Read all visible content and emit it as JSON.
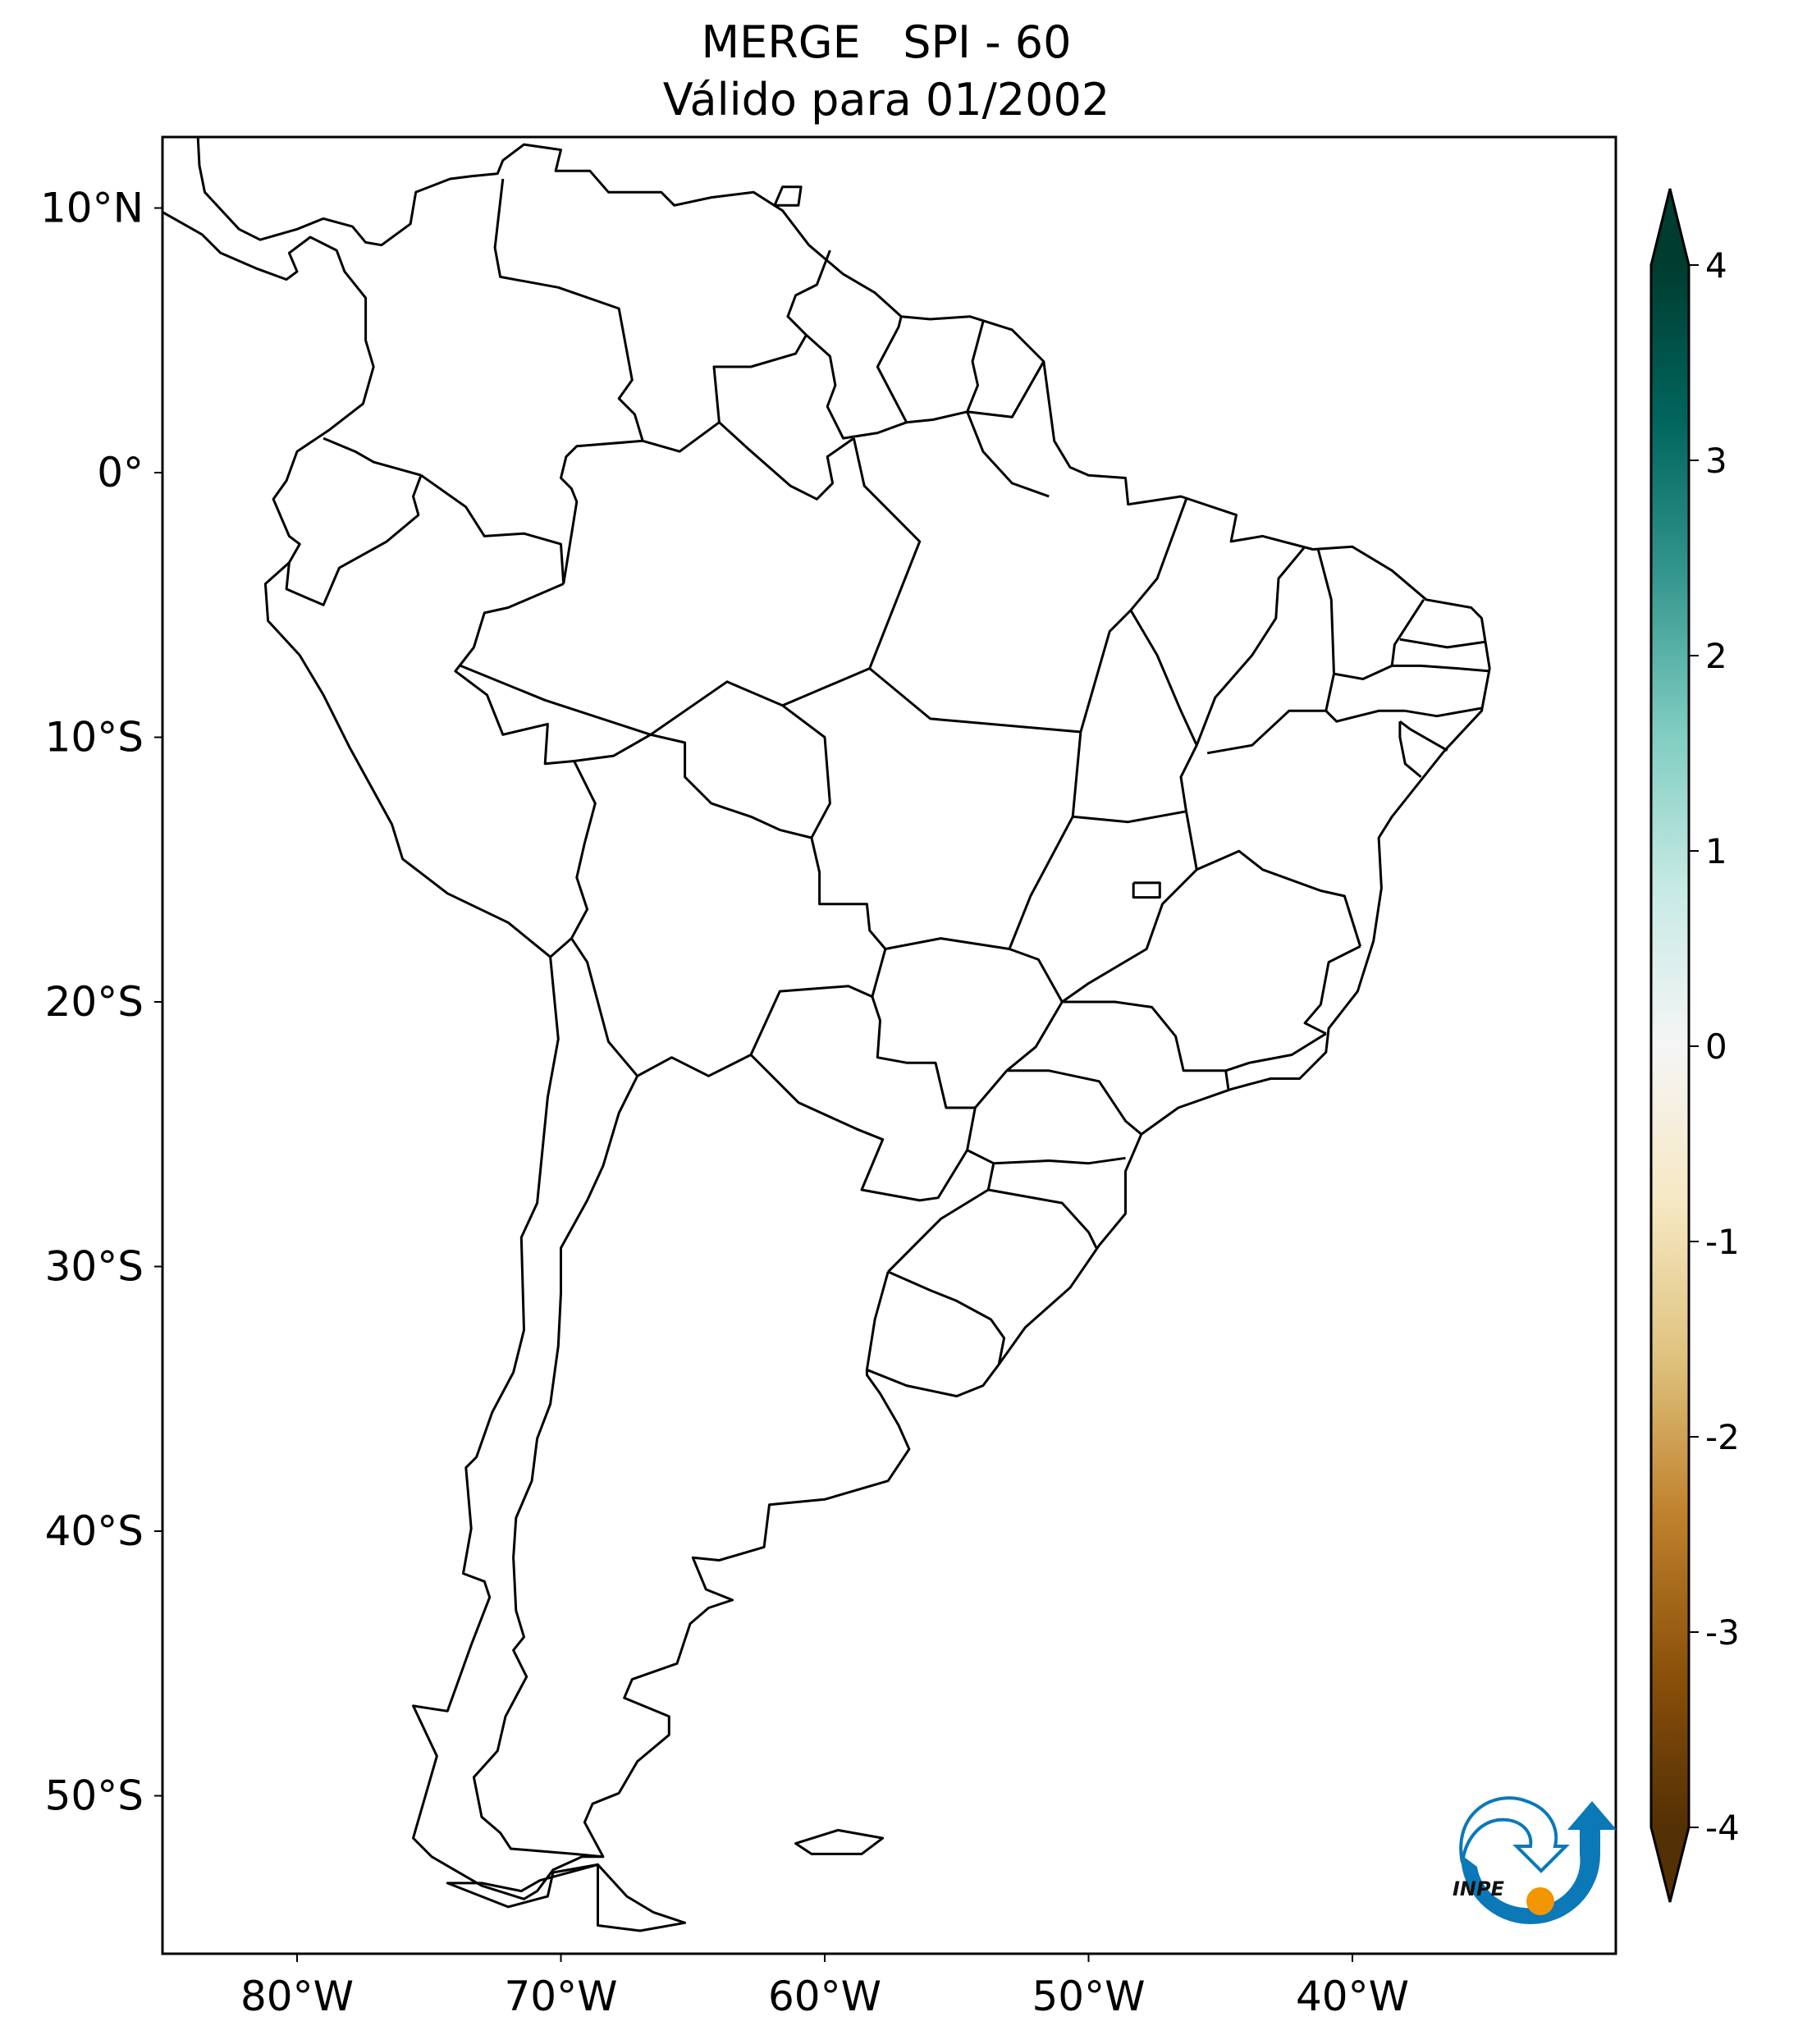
{
  "title": {
    "line1": "MERGE   SPI - 60",
    "line2": "Válido para 01/2002"
  },
  "map": {
    "projection": "plate-carree",
    "extent_lon": [
      -85,
      -30
    ],
    "extent_lat": [
      -56,
      12.7
    ],
    "lat_ticks": [
      {
        "value": 10,
        "label": "10°N"
      },
      {
        "value": 0,
        "label": "0°"
      },
      {
        "value": -10,
        "label": "10°S"
      },
      {
        "value": -20,
        "label": "20°S"
      },
      {
        "value": -30,
        "label": "30°S"
      },
      {
        "value": -40,
        "label": "40°S"
      },
      {
        "value": -50,
        "label": "50°S"
      }
    ],
    "lon_ticks": [
      {
        "value": -80,
        "label": "80°W"
      },
      {
        "value": -70,
        "label": "70°W"
      },
      {
        "value": -60,
        "label": "60°W"
      },
      {
        "value": -50,
        "label": "50°W"
      },
      {
        "value": -40,
        "label": "40°W"
      }
    ],
    "field": "SPI-60 (no shaded values visible; map appears blank/white)"
  },
  "colorbar": {
    "colormap": "BrBG",
    "range": [
      -4,
      4
    ],
    "extend": "both",
    "ticks": [
      {
        "value": 4,
        "label": "4"
      },
      {
        "value": 3,
        "label": "3"
      },
      {
        "value": 2,
        "label": "2"
      },
      {
        "value": 1,
        "label": "1"
      },
      {
        "value": 0,
        "label": "0"
      },
      {
        "value": -1,
        "label": "-1"
      },
      {
        "value": -2,
        "label": "-2"
      },
      {
        "value": -3,
        "label": "-3"
      },
      {
        "value": -4,
        "label": "-4"
      }
    ],
    "colors": [
      "#543005",
      "#8c510a",
      "#bf812d",
      "#dfc27d",
      "#f6e8c3",
      "#f5f5f5",
      "#c7eae5",
      "#80cdc1",
      "#35978f",
      "#01665e",
      "#003c30"
    ]
  },
  "logo": {
    "text": "INPE",
    "blue": "#0b78b8",
    "orange": "#f29500"
  }
}
